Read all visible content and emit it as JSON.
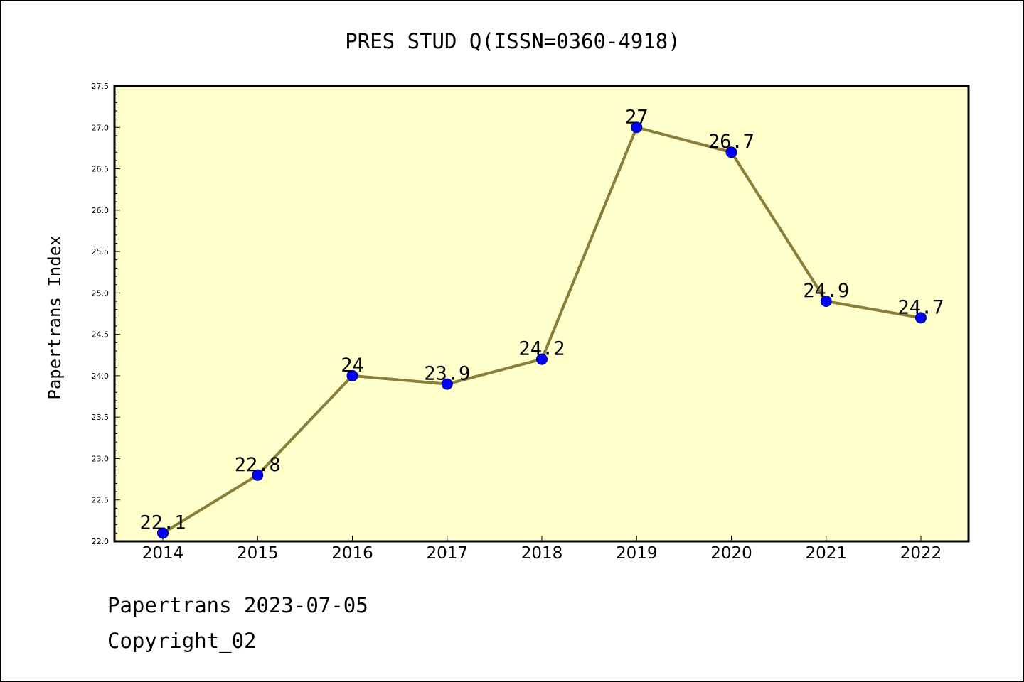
{
  "chart_data": {
    "type": "line",
    "title": "PRES STUD Q(ISSN=0360-4918)",
    "xlabel": "",
    "ylabel": "Papertrans Index",
    "categories": [
      "2014",
      "2015",
      "2016",
      "2017",
      "2018",
      "2019",
      "2020",
      "2021",
      "2022"
    ],
    "series": [
      {
        "values": [
          22.1,
          22.8,
          24.0,
          23.9,
          24.2,
          27.0,
          26.7,
          24.9,
          24.7
        ],
        "data_labels": [
          "22.1",
          "22.8",
          "24",
          "23.9",
          "24.2",
          "27",
          "26.7",
          "24.9",
          "24.7"
        ]
      }
    ],
    "ylim": [
      22.0,
      27.5
    ],
    "yticks": [
      "22.0",
      "22.5",
      "23.0",
      "23.5",
      "24.0",
      "24.5",
      "25.0",
      "25.5",
      "26.0",
      "26.5",
      "27.0",
      "27.5"
    ],
    "grid": false,
    "legend": "none",
    "colors": {
      "plot_background": "#ffffcc",
      "line": "#8b7d3a",
      "marker_fill": "#0000ff",
      "marker_edge": "#000066"
    }
  },
  "footer": {
    "line1": "Papertrans 2023-07-05",
    "line2": "Copyright_02"
  }
}
